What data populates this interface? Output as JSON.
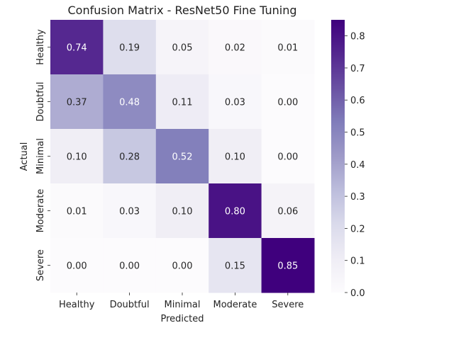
{
  "chart_data": {
    "type": "heatmap",
    "title": "Confusion Matrix - ResNet50 Fine Tuning",
    "xlabel": "Predicted",
    "ylabel": "Actual",
    "x_categories": [
      "Healthy",
      "Doubtful",
      "Minimal",
      "Moderate",
      "Severe"
    ],
    "y_categories": [
      "Healthy",
      "Doubtful",
      "Minimal",
      "Moderate",
      "Severe"
    ],
    "values": [
      [
        0.74,
        0.19,
        0.05,
        0.02,
        0.01
      ],
      [
        0.37,
        0.48,
        0.11,
        0.03,
        0.0
      ],
      [
        0.1,
        0.28,
        0.52,
        0.1,
        0.0
      ],
      [
        0.01,
        0.03,
        0.1,
        0.8,
        0.06
      ],
      [
        0.0,
        0.0,
        0.0,
        0.15,
        0.85
      ]
    ],
    "colorbar": {
      "range": [
        0.0,
        0.85
      ],
      "ticks": [
        "0.0",
        "0.1",
        "0.2",
        "0.3",
        "0.4",
        "0.5",
        "0.6",
        "0.7",
        "0.8"
      ],
      "colors": {
        "low": "#fcfbfd",
        "mid": "#9e9ac8",
        "high": "#3f007d"
      }
    },
    "text_colors": {
      "dark": "#262626",
      "light": "#ffffff"
    }
  }
}
